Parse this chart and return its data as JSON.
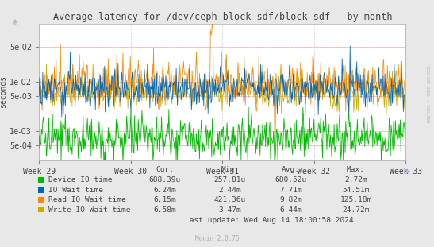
{
  "title": "Average latency for /dev/ceph-block-sdf/block-sdf - by month",
  "ylabel": "seconds",
  "xlabel_ticks": [
    "Week 29",
    "Week 30",
    "Week 31",
    "Week 32",
    "Week 33"
  ],
  "background_color": "#e8e8e8",
  "plot_bg_color": "#ffffff",
  "grid_color": "#bbbbdd",
  "colors": {
    "device_io": "#00bb00",
    "io_wait": "#0066bb",
    "read_io": "#ff8800",
    "write_io": "#ccaa00"
  },
  "legend": [
    {
      "label": "Device IO time",
      "color": "#00bb00"
    },
    {
      "label": "IO Wait time",
      "color": "#0066bb"
    },
    {
      "label": "Read IO Wait time",
      "color": "#ff8800"
    },
    {
      "label": "Write IO Wait time",
      "color": "#ccaa00"
    }
  ],
  "stats": {
    "headers": [
      "Cur:",
      "Min:",
      "Avg:",
      "Max:"
    ],
    "rows": [
      [
        "Device IO time",
        "688.39u",
        "257.81u",
        "680.52u",
        "2.72m"
      ],
      [
        "IO Wait time",
        "6.24m",
        "2.44m",
        "7.71m",
        "54.51m"
      ],
      [
        "Read IO Wait time",
        "6.15m",
        "421.36u",
        "9.82m",
        "125.18m"
      ],
      [
        "Write IO Wait time",
        "6.58m",
        "3.47m",
        "6.44m",
        "24.72m"
      ]
    ]
  },
  "footer": "Last update: Wed Aug 14 18:00:58 2024",
  "munin_version": "Munin 2.0.75",
  "rrdtool_label": "RRDTOOL / TOBI OETIKER",
  "n_points": 600,
  "seed": 42
}
